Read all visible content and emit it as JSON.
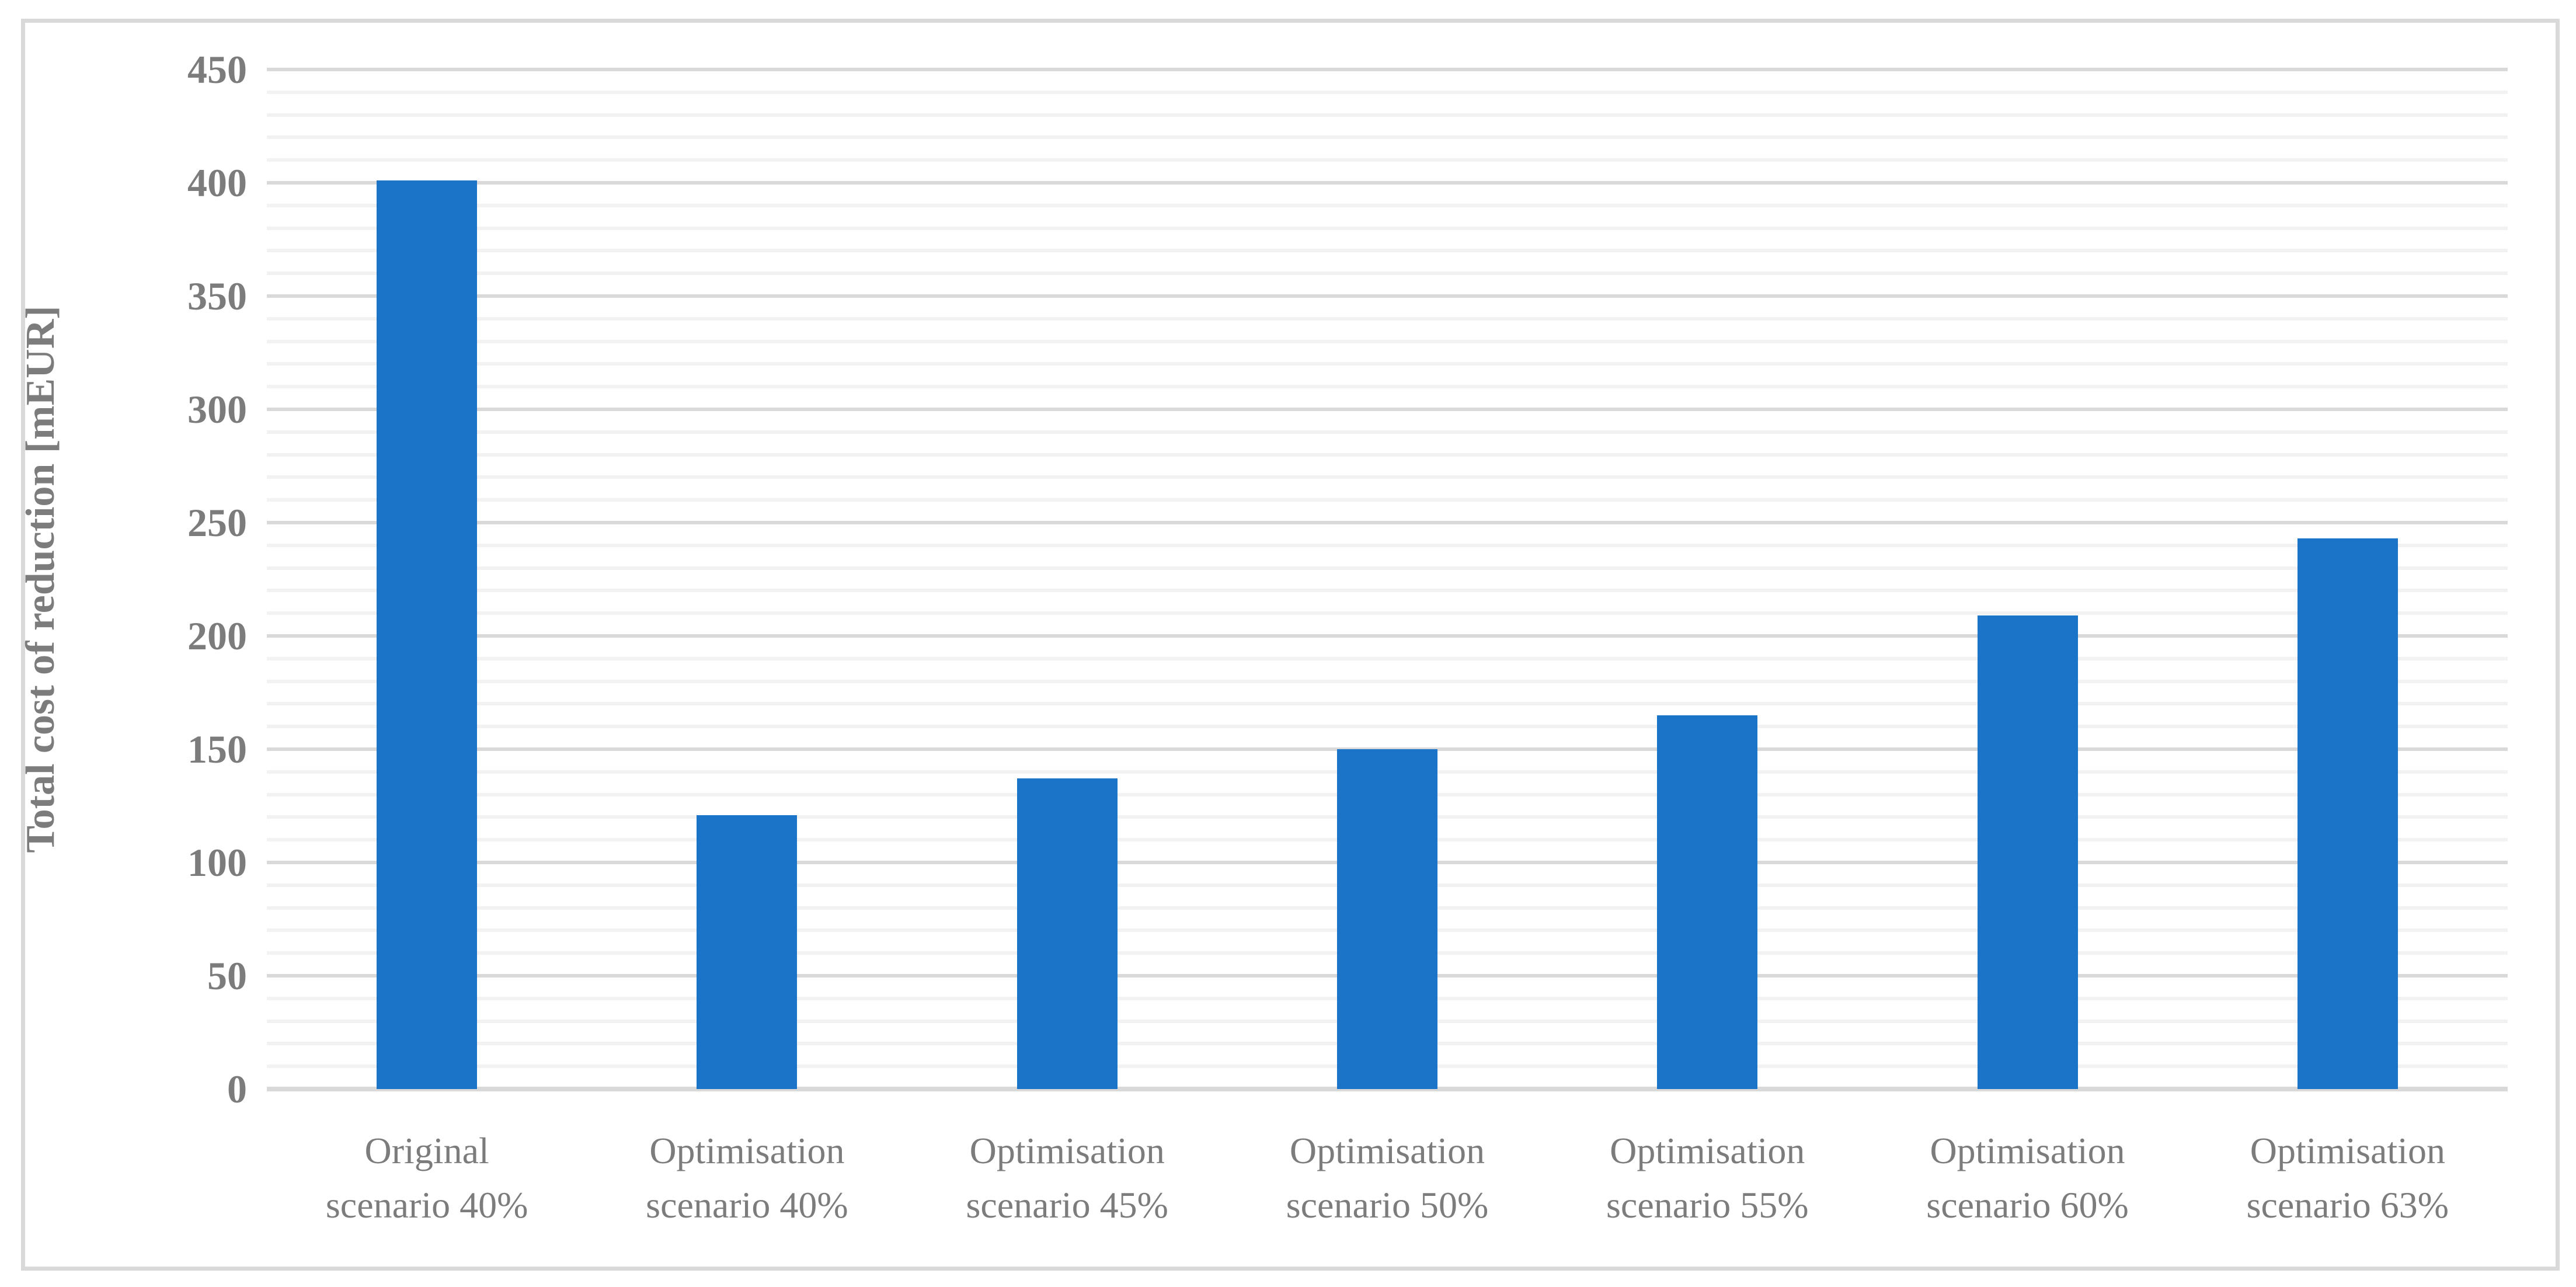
{
  "figure": {
    "background": "#FFFFFF",
    "frame_border_color": "#D9D9D9",
    "text_color": "#7C7C7C"
  },
  "chart_data": {
    "type": "bar",
    "title": "",
    "xlabel": "",
    "ylabel": "Total cost of reduction [mEUR]",
    "ylim": [
      0,
      450
    ],
    "y_major_step": 50,
    "y_minor_step": 10,
    "grid": "on",
    "legend": "none",
    "y_tick_labels": [
      "0",
      "50",
      "100",
      "150",
      "200",
      "250",
      "300",
      "350",
      "400",
      "450"
    ],
    "categories": [
      "Original scenario 40%",
      "Optimisation scenario 40%",
      "Optimisation scenario 45%",
      "Optimisation scenario 50%",
      "Optimisation scenario 55%",
      "Optimisation scenario 60%",
      "Optimisation scenario 63%"
    ],
    "category_lines": [
      [
        "Original",
        "scenario 40%"
      ],
      [
        "Optimisation",
        "scenario 40%"
      ],
      [
        "Optimisation",
        "scenario 45%"
      ],
      [
        "Optimisation",
        "scenario 50%"
      ],
      [
        "Optimisation",
        "scenario 55%"
      ],
      [
        "Optimisation",
        "scenario 60%"
      ],
      [
        "Optimisation",
        "scenario 63%"
      ]
    ],
    "values": [
      401,
      121,
      137,
      150,
      165,
      209,
      243
    ],
    "bar_color": "#1B74C8",
    "major_grid_color": "#D9D9D9",
    "minor_grid_color": "#F2F2F2",
    "axis_line_color": "#D9D9D9"
  }
}
